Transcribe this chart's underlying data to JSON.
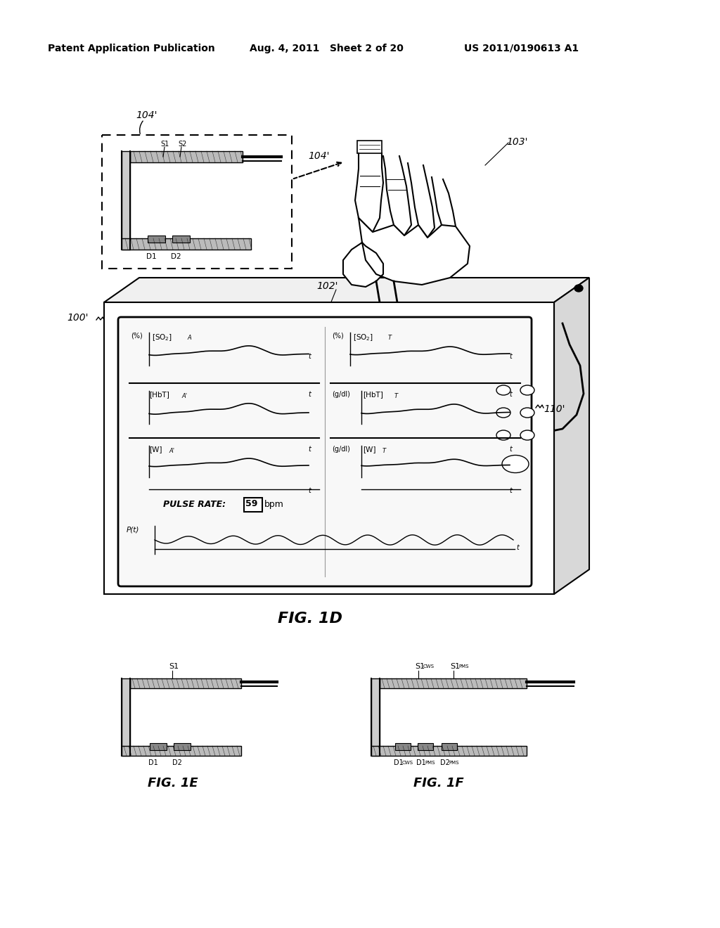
{
  "bg_color": "#ffffff",
  "header_left": "Patent Application Publication",
  "header_mid": "Aug. 4, 2011   Sheet 2 of 20",
  "header_right": "US 2011/0190613 A1"
}
